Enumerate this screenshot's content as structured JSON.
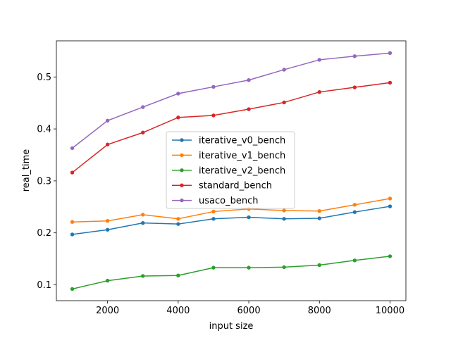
{
  "chart_data": {
    "type": "line",
    "title": "",
    "xlabel": "input size",
    "ylabel": "real_time",
    "xlim": [
      550,
      10450
    ],
    "ylim": [
      0.0695,
      0.5695
    ],
    "xticks": [
      2000,
      4000,
      6000,
      8000,
      10000
    ],
    "yticks": [
      0.1,
      0.2,
      0.3,
      0.4,
      0.5
    ],
    "grid": false,
    "legend_position": "center",
    "x": [
      1000,
      2000,
      3000,
      4000,
      5000,
      6000,
      7000,
      8000,
      9000,
      10000
    ],
    "series": [
      {
        "name": "iterative_v0_bench",
        "color": "#1f77b4",
        "values": [
          0.197,
          0.206,
          0.219,
          0.217,
          0.227,
          0.23,
          0.227,
          0.228,
          0.24,
          0.251
        ]
      },
      {
        "name": "iterative_v1_bench",
        "color": "#ff7f0e",
        "values": [
          0.221,
          0.223,
          0.235,
          0.227,
          0.241,
          0.246,
          0.243,
          0.242,
          0.254,
          0.266
        ]
      },
      {
        "name": "iterative_v2_bench",
        "color": "#2ca02c",
        "values": [
          0.092,
          0.108,
          0.117,
          0.118,
          0.133,
          0.133,
          0.134,
          0.138,
          0.147,
          0.155
        ]
      },
      {
        "name": "standard_bench",
        "color": "#d62728",
        "values": [
          0.316,
          0.37,
          0.393,
          0.422,
          0.426,
          0.438,
          0.451,
          0.471,
          0.48,
          0.489
        ]
      },
      {
        "name": "usaco_bench",
        "color": "#9467bd",
        "values": [
          0.363,
          0.416,
          0.442,
          0.468,
          0.481,
          0.494,
          0.514,
          0.533,
          0.54,
          0.546
        ]
      }
    ]
  }
}
